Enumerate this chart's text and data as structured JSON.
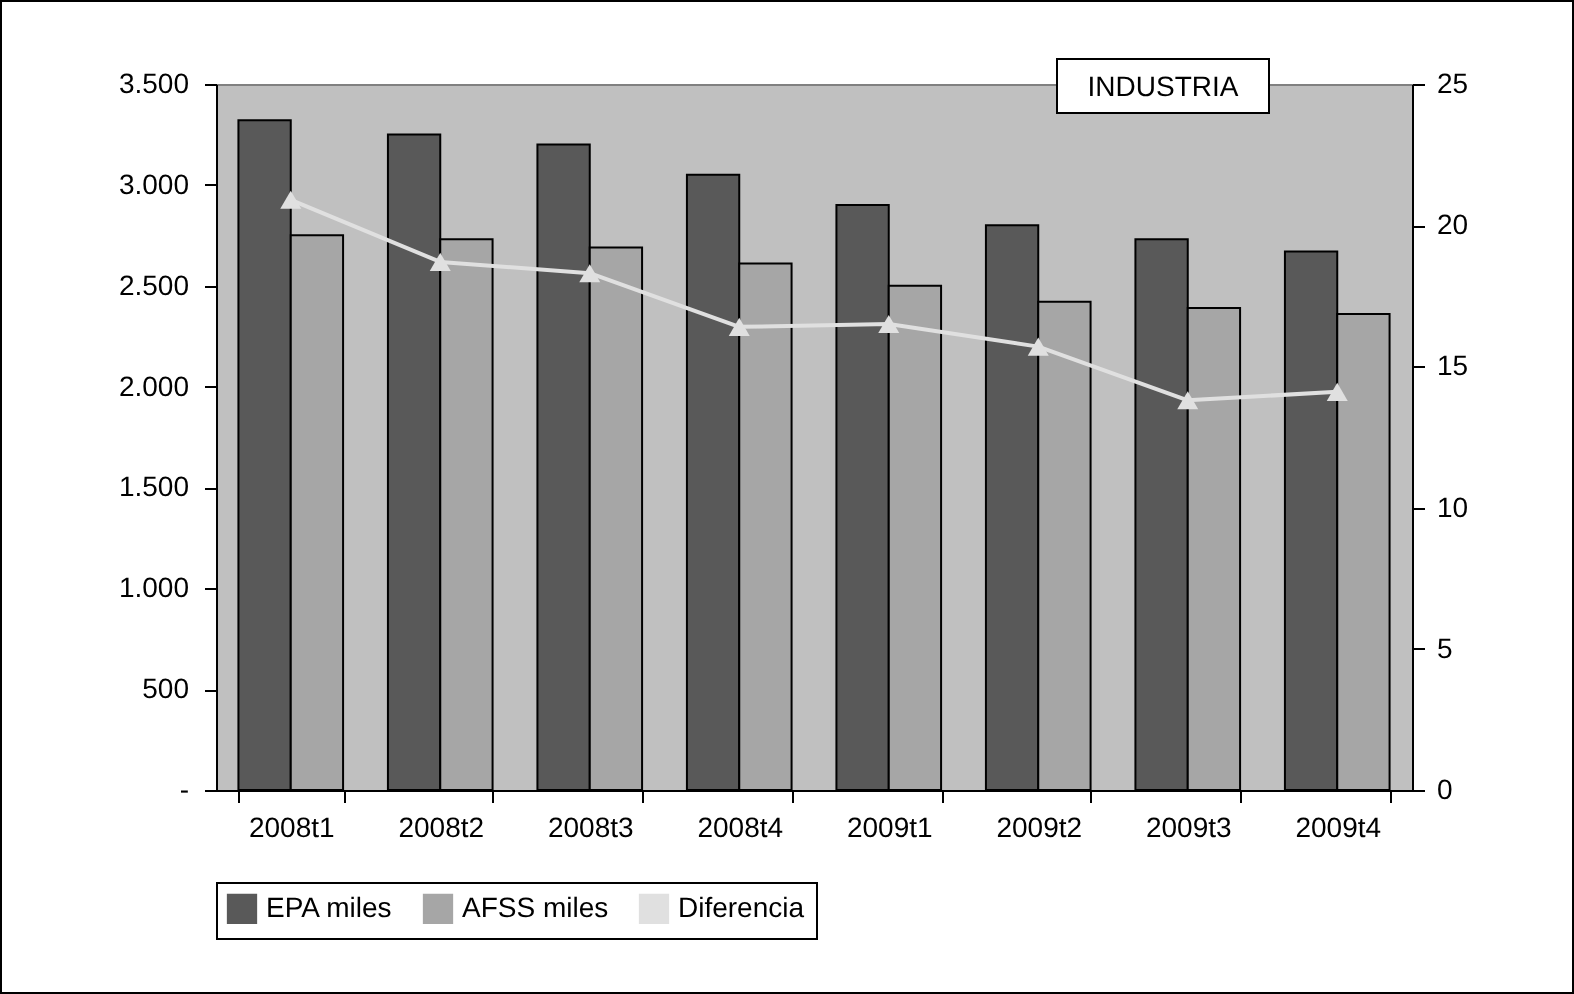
{
  "chart_data": {
    "type": "bar",
    "title": "INDUSTRIA",
    "categories": [
      "2008t1",
      "2008t2",
      "2008t3",
      "2008t4",
      "2009t1",
      "2009t2",
      "2009t3",
      "2009t4"
    ],
    "series": [
      {
        "name": "EPA miles",
        "color": "#595959",
        "values": [
          3320,
          3250,
          3200,
          3050,
          2900,
          2800,
          2730,
          2670
        ]
      },
      {
        "name": "AFSS miles",
        "color": "#a6a6a6",
        "values": [
          2750,
          2730,
          2690,
          2610,
          2500,
          2420,
          2390,
          2360
        ]
      },
      {
        "name": "Diferencia",
        "type": "line",
        "axis": "y2",
        "color": "#e0e0e0",
        "marker": "triangle",
        "line_style": "solid",
        "values": [
          20.9,
          18.7,
          18.3,
          16.4,
          16.5,
          15.7,
          13.8,
          14.1
        ]
      }
    ],
    "ylim": [
      0,
      3500
    ],
    "yticks": [
      {
        "value": 0,
        "label": "-"
      },
      500,
      {
        "value": 1000,
        "label": "1.000"
      },
      {
        "value": 1500,
        "label": "1.500"
      },
      {
        "value": 2000,
        "label": "2.000"
      },
      {
        "value": 2500,
        "label": "2.500"
      },
      {
        "value": 3000,
        "label": "3.000"
      },
      {
        "value": 3500,
        "label": "3.500"
      }
    ],
    "y2lim": [
      0,
      25
    ],
    "y2ticks": [
      0,
      5,
      10,
      15,
      20,
      25
    ],
    "grid": false,
    "legend": "bottom"
  }
}
